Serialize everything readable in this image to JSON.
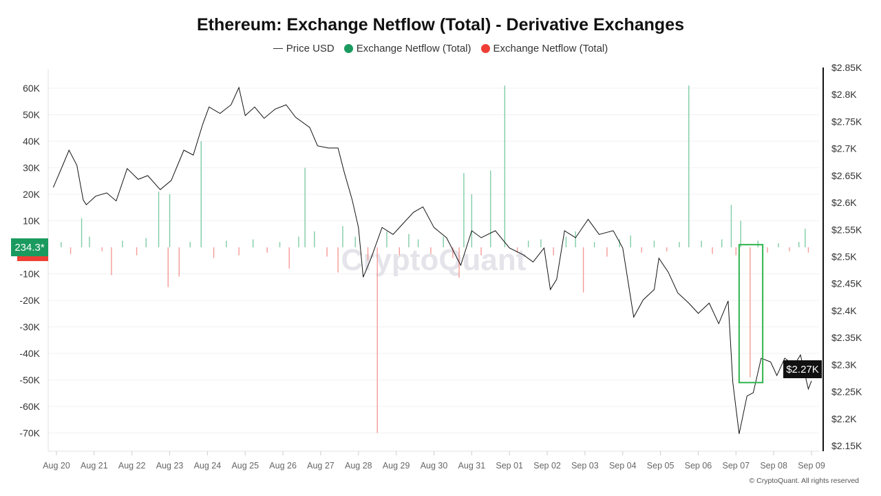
{
  "chart_data": {
    "type": "bar+line",
    "title": "Ethereum: Exchange Netflow (Total) - Derivative Exchanges",
    "legend": [
      {
        "name": "Price USD",
        "color": "#333333",
        "marker": "line"
      },
      {
        "name": "Exchange Netflow (Total)",
        "color": "#1a9a5f",
        "marker": "dot"
      },
      {
        "name": "Exchange Netflow (Total)",
        "color": "#ef3e36",
        "marker": "dot"
      }
    ],
    "legend_placement": "top-center",
    "x_ticks": [
      "Aug 20",
      "Aug 21",
      "Aug 22",
      "Aug 23",
      "Aug 24",
      "Aug 25",
      "Aug 26",
      "Aug 27",
      "Aug 28",
      "Aug 29",
      "Aug 30",
      "Aug 31",
      "Sep 01",
      "Sep 02",
      "Sep 03",
      "Sep 04",
      "Sep 05",
      "Sep 06",
      "Sep 07",
      "Sep 08",
      "Sep 09"
    ],
    "left_axis": {
      "ticks": [
        "60K",
        "50K",
        "40K",
        "30K",
        "20K",
        "10K",
        "-10K",
        "-20K",
        "-30K",
        "-40K",
        "-50K",
        "-60K",
        "-70K"
      ],
      "range": [
        -77000,
        66000
      ]
    },
    "right_axis": {
      "ticks": [
        "$2.85K",
        "$2.8K",
        "$2.75K",
        "$2.7K",
        "$2.65K",
        "$2.6K",
        "$2.55K",
        "$2.5K",
        "$2.45K",
        "$2.4K",
        "$2.35K",
        "$2.3K",
        "$2.25K",
        "$2.2K",
        "$2.15K"
      ],
      "range": [
        2150,
        2850
      ]
    },
    "grid": true,
    "current_netflow_label": "234.3*",
    "current_price_label": "$2.27K",
    "watermark": "CryptoQuant",
    "highlight_box": {
      "from": "Sep 07 02:00",
      "to": "Sep 07 17:00",
      "netflow_range": [
        -51000,
        1000
      ],
      "color": "#2db34a"
    },
    "price_series": {
      "name": "Price USD",
      "points": [
        [
          "Aug 19 22:00",
          2628
        ],
        [
          "Aug 20 04:00",
          2669
        ],
        [
          "Aug 20 08:00",
          2697
        ],
        [
          "Aug 20 13:00",
          2669
        ],
        [
          "Aug 20 17:00",
          2605
        ],
        [
          "Aug 20 19:00",
          2596
        ],
        [
          "Aug 21 01:00",
          2612
        ],
        [
          "Aug 21 08:00",
          2618
        ],
        [
          "Aug 21 14:00",
          2603
        ],
        [
          "Aug 21 21:00",
          2663
        ],
        [
          "Aug 22 04:00",
          2643
        ],
        [
          "Aug 22 10:00",
          2650
        ],
        [
          "Aug 22 18:00",
          2624
        ],
        [
          "Aug 23 01:00",
          2641
        ],
        [
          "Aug 23 09:00",
          2697
        ],
        [
          "Aug 23 15:00",
          2688
        ],
        [
          "Aug 23 21:00",
          2745
        ],
        [
          "Aug 24 01:00",
          2777
        ],
        [
          "Aug 24 08:00",
          2765
        ],
        [
          "Aug 24 15:00",
          2781
        ],
        [
          "Aug 24 20:00",
          2813
        ],
        [
          "Aug 25 00:00",
          2761
        ],
        [
          "Aug 25 06:00",
          2777
        ],
        [
          "Aug 25 12:00",
          2756
        ],
        [
          "Aug 25 19:00",
          2773
        ],
        [
          "Aug 26 02:00",
          2781
        ],
        [
          "Aug 26 08:00",
          2758
        ],
        [
          "Aug 26 17:00",
          2739
        ],
        [
          "Aug 26 22:00",
          2705
        ],
        [
          "Aug 27 05:00",
          2701
        ],
        [
          "Aug 27 11:00",
          2701
        ],
        [
          "Aug 27 15:00",
          2656
        ],
        [
          "Aug 27 20:00",
          2605
        ],
        [
          "Aug 28 00:00",
          2554
        ],
        [
          "Aug 28 03:00",
          2462
        ],
        [
          "Aug 28 08:00",
          2497
        ],
        [
          "Aug 28 15:00",
          2554
        ],
        [
          "Aug 28 22:00",
          2541
        ],
        [
          "Aug 29 04:00",
          2560
        ],
        [
          "Aug 29 11:00",
          2582
        ],
        [
          "Aug 29 17:00",
          2592
        ],
        [
          "Aug 30 00:00",
          2554
        ],
        [
          "Aug 30 08:00",
          2535
        ],
        [
          "Aug 30 17:00",
          2484
        ],
        [
          "Aug 31 00:00",
          2548
        ],
        [
          "Aug 31 06:00",
          2535
        ],
        [
          "Aug 31 15:00",
          2548
        ],
        [
          "Sep 01 00:00",
          2516
        ],
        [
          "Sep 01 09:00",
          2503
        ],
        [
          "Sep 01 15:00",
          2490
        ],
        [
          "Sep 01 22:00",
          2516
        ],
        [
          "Sep 02 02:00",
          2439
        ],
        [
          "Sep 02 06:00",
          2458
        ],
        [
          "Sep 02 11:00",
          2548
        ],
        [
          "Sep 02 18:00",
          2535
        ],
        [
          "Sep 03 02:00",
          2569
        ],
        [
          "Sep 03 09:00",
          2541
        ],
        [
          "Sep 03 18:00",
          2548
        ],
        [
          "Sep 04 00:00",
          2516
        ],
        [
          "Sep 04 07:00",
          2388
        ],
        [
          "Sep 04 13:00",
          2420
        ],
        [
          "Sep 04 20:00",
          2439
        ],
        [
          "Sep 04 23:00",
          2497
        ],
        [
          "Sep 05 05:00",
          2471
        ],
        [
          "Sep 05 11:00",
          2433
        ],
        [
          "Sep 05 18:00",
          2414
        ],
        [
          "Sep 06 00:00",
          2395
        ],
        [
          "Sep 06 07:00",
          2414
        ],
        [
          "Sep 06 13:00",
          2376
        ],
        [
          "Sep 06 19:00",
          2418
        ],
        [
          "Sep 06 22:00",
          2267
        ],
        [
          "Sep 07 02:00",
          2172
        ],
        [
          "Sep 07 07:00",
          2242
        ],
        [
          "Sep 07 11:00",
          2248
        ],
        [
          "Sep 07 16:00",
          2312
        ],
        [
          "Sep 07 22:00",
          2305
        ],
        [
          "Sep 08 02:00",
          2280
        ],
        [
          "Sep 08 07:00",
          2312
        ],
        [
          "Sep 08 13:00",
          2299
        ],
        [
          "Sep 08 17:00",
          2318
        ],
        [
          "Sep 08 22:00",
          2255
        ],
        [
          "Sep 09 00:00",
          2270
        ]
      ]
    },
    "netflow_series": {
      "name": "Exchange Netflow (Total)",
      "positive_color": "#1a9a5f",
      "negative_color": "#ef3e36",
      "bars": [
        [
          "Aug 20 03:00",
          2000
        ],
        [
          "Aug 20 09:00",
          -2500
        ],
        [
          "Aug 20 16:00",
          11000
        ],
        [
          "Aug 20 21:00",
          4000
        ],
        [
          "Aug 21 05:00",
          -1500
        ],
        [
          "Aug 21 11:00",
          -10500
        ],
        [
          "Aug 21 18:00",
          2500
        ],
        [
          "Aug 22 03:00",
          -3000
        ],
        [
          "Aug 22 09:00",
          3500
        ],
        [
          "Aug 22 17:00",
          21000
        ],
        [
          "Aug 22 23:00",
          -15000
        ],
        [
          "Aug 23 00:00",
          20000
        ],
        [
          "Aug 23 06:00",
          -11000
        ],
        [
          "Aug 23 13:00",
          2000
        ],
        [
          "Aug 23 20:00",
          40000
        ],
        [
          "Aug 24 04:00",
          -4000
        ],
        [
          "Aug 24 12:00",
          2500
        ],
        [
          "Aug 24 20:00",
          -3000
        ],
        [
          "Aug 25 05:00",
          3000
        ],
        [
          "Aug 25 14:00",
          -2000
        ],
        [
          "Aug 25 22:00",
          2000
        ],
        [
          "Aug 26 04:00",
          -8000
        ],
        [
          "Aug 26 10:00",
          4000
        ],
        [
          "Aug 26 14:00",
          30000
        ],
        [
          "Aug 26 20:00",
          6000
        ],
        [
          "Aug 27 04:00",
          -3500
        ],
        [
          "Aug 27 11:00",
          -9500
        ],
        [
          "Aug 27 14:00",
          8000
        ],
        [
          "Aug 27 22:00",
          4000
        ],
        [
          "Aug 28 06:00",
          -5000
        ],
        [
          "Aug 28 12:00",
          -70000
        ],
        [
          "Aug 28 18:00",
          6000
        ],
        [
          "Aug 29 02:00",
          -3000
        ],
        [
          "Aug 29 08:00",
          5000
        ],
        [
          "Aug 29 14:00",
          3000
        ],
        [
          "Aug 29 22:00",
          -2500
        ],
        [
          "Aug 30 06:00",
          4000
        ],
        [
          "Aug 30 12:00",
          -4000
        ],
        [
          "Aug 30 16:00",
          -11500
        ],
        [
          "Aug 30 19:00",
          28000
        ],
        [
          "Aug 31 00:00",
          20000
        ],
        [
          "Aug 31 06:00",
          -3000
        ],
        [
          "Aug 31 12:00",
          29000
        ],
        [
          "Aug 31 21:00",
          61000
        ],
        [
          "Sep 01 05:00",
          -2000
        ],
        [
          "Sep 01 12:00",
          2500
        ],
        [
          "Sep 01 20:00",
          3000
        ],
        [
          "Sep 02 04:00",
          -3000
        ],
        [
          "Sep 02 12:00",
          4000
        ],
        [
          "Sep 02 18:00",
          6000
        ],
        [
          "Sep 02 23:00",
          -17000
        ],
        [
          "Sep 03 06:00",
          2000
        ],
        [
          "Sep 03 14:00",
          -3500
        ],
        [
          "Sep 03 22:00",
          3000
        ],
        [
          "Sep 04 05:00",
          4500
        ],
        [
          "Sep 04 12:00",
          -2000
        ],
        [
          "Sep 04 20:00",
          2500
        ],
        [
          "Sep 05 04:00",
          -1500
        ],
        [
          "Sep 05 12:00",
          2000
        ],
        [
          "Sep 05 18:00",
          61000
        ],
        [
          "Sep 06 02:00",
          2500
        ],
        [
          "Sep 06 09:00",
          -2500
        ],
        [
          "Sep 06 15:00",
          3000
        ],
        [
          "Sep 06 21:00",
          16000
        ],
        [
          "Sep 07 00:00",
          -3000
        ],
        [
          "Sep 07 03:00",
          10000
        ],
        [
          "Sep 07 09:00",
          -49000
        ],
        [
          "Sep 07 14:00",
          2500
        ],
        [
          "Sep 07 20:00",
          -2000
        ],
        [
          "Sep 08 03:00",
          1500
        ],
        [
          "Sep 08 10:00",
          -1500
        ],
        [
          "Sep 08 16:00",
          2000
        ],
        [
          "Sep 08 20:00",
          7000
        ],
        [
          "Sep 08 22:00",
          -2000
        ]
      ]
    }
  },
  "footer": {
    "copyright": "© CryptoQuant. All rights reserved"
  }
}
